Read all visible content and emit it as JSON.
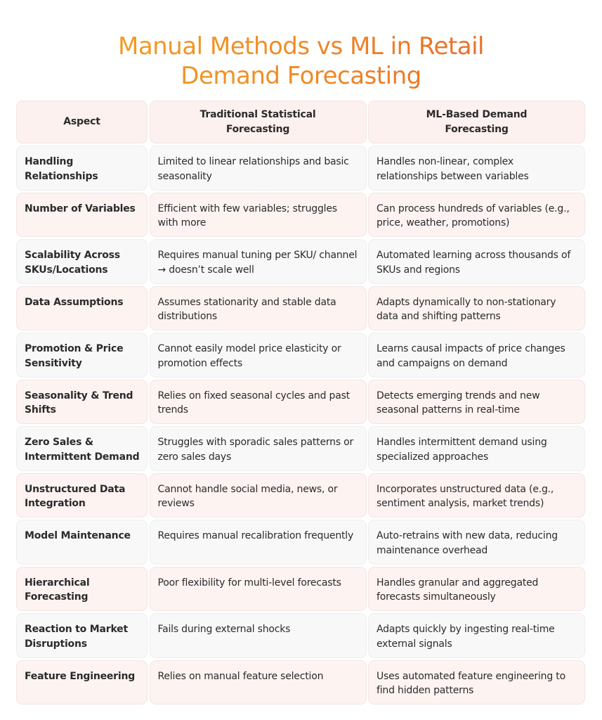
{
  "title": {
    "line1": "Manual Methods vs ML in Retail",
    "line2": "Demand Forecasting",
    "gradient": [
      "#f2a51f",
      "#e9592b"
    ]
  },
  "table": {
    "headers": [
      "Aspect",
      "Traditional Statistical Forecasting",
      "ML-Based Demand Forecasting"
    ],
    "rows": [
      [
        "Handling Relationships",
        "Limited to linear relationships and basic seasonality",
        "Handles non-linear, complex relationships between variables"
      ],
      [
        "Number of Variables",
        "Efficient with few variables; struggles with more",
        "Can process hundreds of variables (e.g., price, weather, promotions)"
      ],
      [
        "Scalability Across SKUs/Locations",
        "Requires manual tuning per SKU/ channel → doesn’t scale well",
        "Automated learning across thousands of SKUs and regions"
      ],
      [
        "Data Assumptions",
        "Assumes stationarity and stable data distributions",
        "Adapts dynamically to non-stationary data and shifting patterns"
      ],
      [
        "Promotion & Price Sensitivity",
        "Cannot easily model price elasticity or promotion effects",
        "Learns causal impacts of price changes and campaigns on demand"
      ],
      [
        "Seasonality & Trend Shifts",
        "Relies on fixed seasonal cycles and past trends",
        "Detects emerging trends and new seasonal patterns in real-time"
      ],
      [
        "Zero Sales & Intermittent Demand",
        "Struggles with sporadic sales patterns or zero sales days",
        "Handles intermittent demand using specialized approaches"
      ],
      [
        "Unstructured Data Integration",
        "Cannot handle social media, news, or reviews",
        "Incorporates unstructured data (e.g., sentiment analysis, market trends)"
      ],
      [
        "Model Maintenance",
        "Requires manual recalibration frequently",
        "Auto-retrains with new data, reducing maintenance overhead"
      ],
      [
        "Hierarchical Forecasting",
        "Poor flexibility for multi-level forecasts",
        "Handles granular and aggregated forecasts simultaneously"
      ],
      [
        "Reaction to Market Disruptions",
        "Fails during external shocks",
        "Adapts quickly by ingesting real-time external signals"
      ],
      [
        "Feature Engineering",
        "Relies on manual feature selection",
        "Uses automated feature engineering to find hidden patterns"
      ]
    ]
  }
}
